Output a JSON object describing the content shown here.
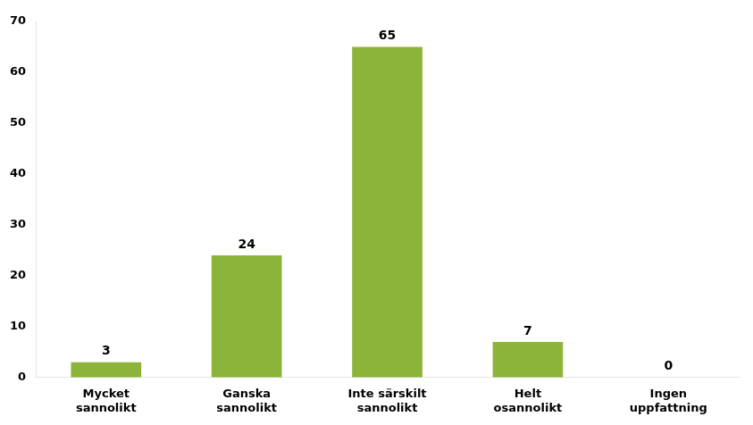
{
  "chart_data": {
    "type": "bar",
    "categories": [
      "Mycket\nsannolikt",
      "Ganska\nsannolikt",
      "Inte särskilt\nsannolikt",
      "Helt\nosannolikt",
      "Ingen\nuppfattning"
    ],
    "values": [
      3,
      24,
      65,
      7,
      0
    ],
    "color": "#8DB43A",
    "ylim": [
      0,
      70
    ],
    "yticks": [
      0,
      10,
      20,
      30,
      40,
      50,
      60,
      70
    ],
    "grid": false,
    "data_labels": true
  }
}
